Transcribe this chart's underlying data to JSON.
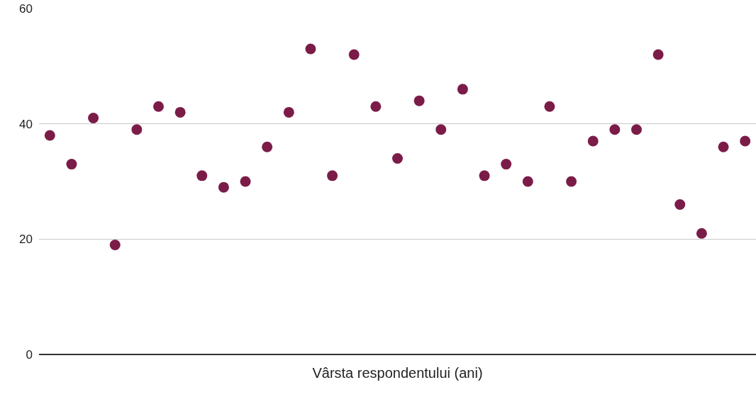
{
  "chart_data": {
    "type": "scatter",
    "xlabel": "Vârsta respondentului (ani)",
    "categories": [
      null,
      null,
      null,
      null,
      null,
      null,
      null,
      null,
      null,
      null,
      null,
      null,
      null,
      null,
      null,
      null,
      null,
      null,
      null,
      null,
      null,
      null,
      null,
      null,
      null,
      null,
      null,
      null,
      null,
      null,
      null,
      null,
      null
    ],
    "series": [
      {
        "color": "#7b1c48",
        "values": [
          38,
          33,
          41,
          19,
          39,
          43,
          42,
          31,
          29,
          30,
          36,
          42,
          53,
          31,
          52,
          43,
          34,
          44,
          39,
          46,
          31,
          33,
          30,
          43,
          30,
          37,
          39,
          39,
          52,
          26,
          21,
          36,
          37
        ]
      }
    ],
    "ylim": [
      0,
      60
    ],
    "yticks": [
      0,
      20,
      40,
      60
    ],
    "grid": "y",
    "marker": "circle",
    "legend": false
  }
}
